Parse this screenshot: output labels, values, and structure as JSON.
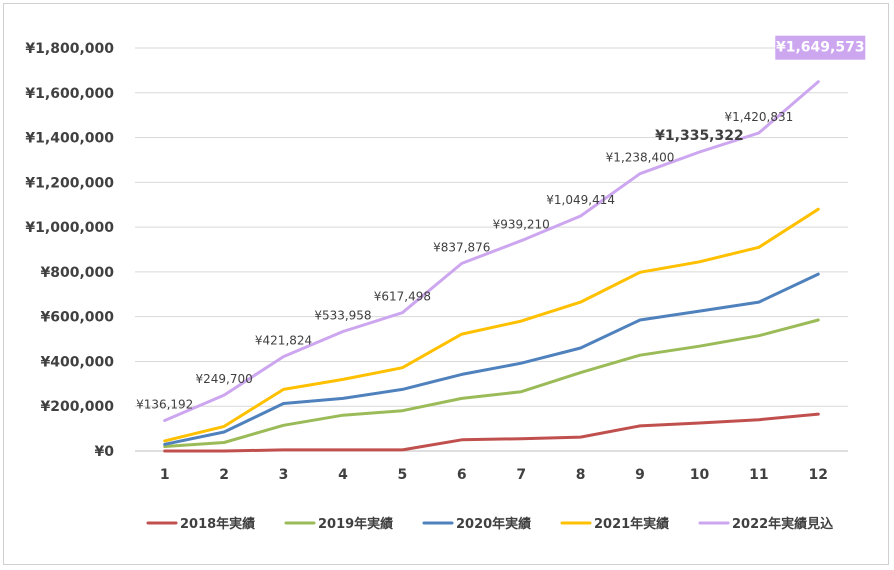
{
  "chart_data": {
    "type": "line",
    "title": "",
    "xlabel": "",
    "ylabel": "",
    "x": [
      1,
      2,
      3,
      4,
      5,
      6,
      7,
      8,
      9,
      10,
      11,
      12
    ],
    "ylim": [
      0,
      1800000
    ],
    "yticks": [
      0,
      200000,
      400000,
      600000,
      800000,
      1000000,
      1200000,
      1400000,
      1600000,
      1800000
    ],
    "ytick_labels": [
      "¥0",
      "¥200,000",
      "¥400,000",
      "¥600,000",
      "¥800,000",
      "¥1,000,000",
      "¥1,200,000",
      "¥1,400,000",
      "¥1,600,000",
      "¥1,800,000"
    ],
    "xtick_labels": [
      "1",
      "2",
      "3",
      "4",
      "5",
      "6",
      "7",
      "8",
      "9",
      "10",
      "11",
      "12"
    ],
    "grid": "horizontal",
    "legend_position": "bottom",
    "series": [
      {
        "name": "2018年実績",
        "color": "#C0504D",
        "values": [
          0,
          0,
          5000,
          5000,
          5000,
          50000,
          55000,
          62000,
          112000,
          125000,
          140000,
          165000
        ]
      },
      {
        "name": "2019年実績",
        "color": "#9BBB59",
        "values": [
          20000,
          38000,
          115000,
          160000,
          180000,
          235000,
          265000,
          350000,
          428000,
          468000,
          515000,
          585000
        ]
      },
      {
        "name": "2020年実績",
        "color": "#4F81BD",
        "values": [
          30000,
          85000,
          212000,
          235000,
          275000,
          342000,
          392000,
          460000,
          585000,
          625000,
          665000,
          790000
        ]
      },
      {
        "name": "2021年実績",
        "color": "#FFC000",
        "values": [
          45000,
          110000,
          275000,
          320000,
          372000,
          522000,
          580000,
          665000,
          798000,
          845000,
          910000,
          1080000
        ]
      },
      {
        "name": "2022年実績見込",
        "color": "#CDA6F0",
        "values": [
          136192,
          249700,
          421824,
          533958,
          617498,
          837876,
          939210,
          1049414,
          1238400,
          1335322,
          1420831,
          1649573
        ]
      }
    ],
    "data_labels": [
      {
        "series": "2022年実績見込",
        "index": 0,
        "text": "¥136,192"
      },
      {
        "series": "2022年実績見込",
        "index": 1,
        "text": "¥249,700"
      },
      {
        "series": "2022年実績見込",
        "index": 2,
        "text": "¥421,824"
      },
      {
        "series": "2022年実績見込",
        "index": 3,
        "text": "¥533,958"
      },
      {
        "series": "2022年実績見込",
        "index": 4,
        "text": "¥617,498"
      },
      {
        "series": "2022年実績見込",
        "index": 5,
        "text": "¥837,876"
      },
      {
        "series": "2022年実績見込",
        "index": 6,
        "text": "¥939,210"
      },
      {
        "series": "2022年実績見込",
        "index": 7,
        "text": "¥1,049,414"
      },
      {
        "series": "2022年実績見込",
        "index": 8,
        "text": "¥1,238,400"
      },
      {
        "series": "2022年実績見込",
        "index": 9,
        "text": "¥1,335,322",
        "style": "bold"
      },
      {
        "series": "2022年実績見込",
        "index": 10,
        "text": "¥1,420,831"
      },
      {
        "series": "2022年実績見込",
        "index": 11,
        "text": "¥1,649,573",
        "style": "highlight-box"
      }
    ]
  }
}
